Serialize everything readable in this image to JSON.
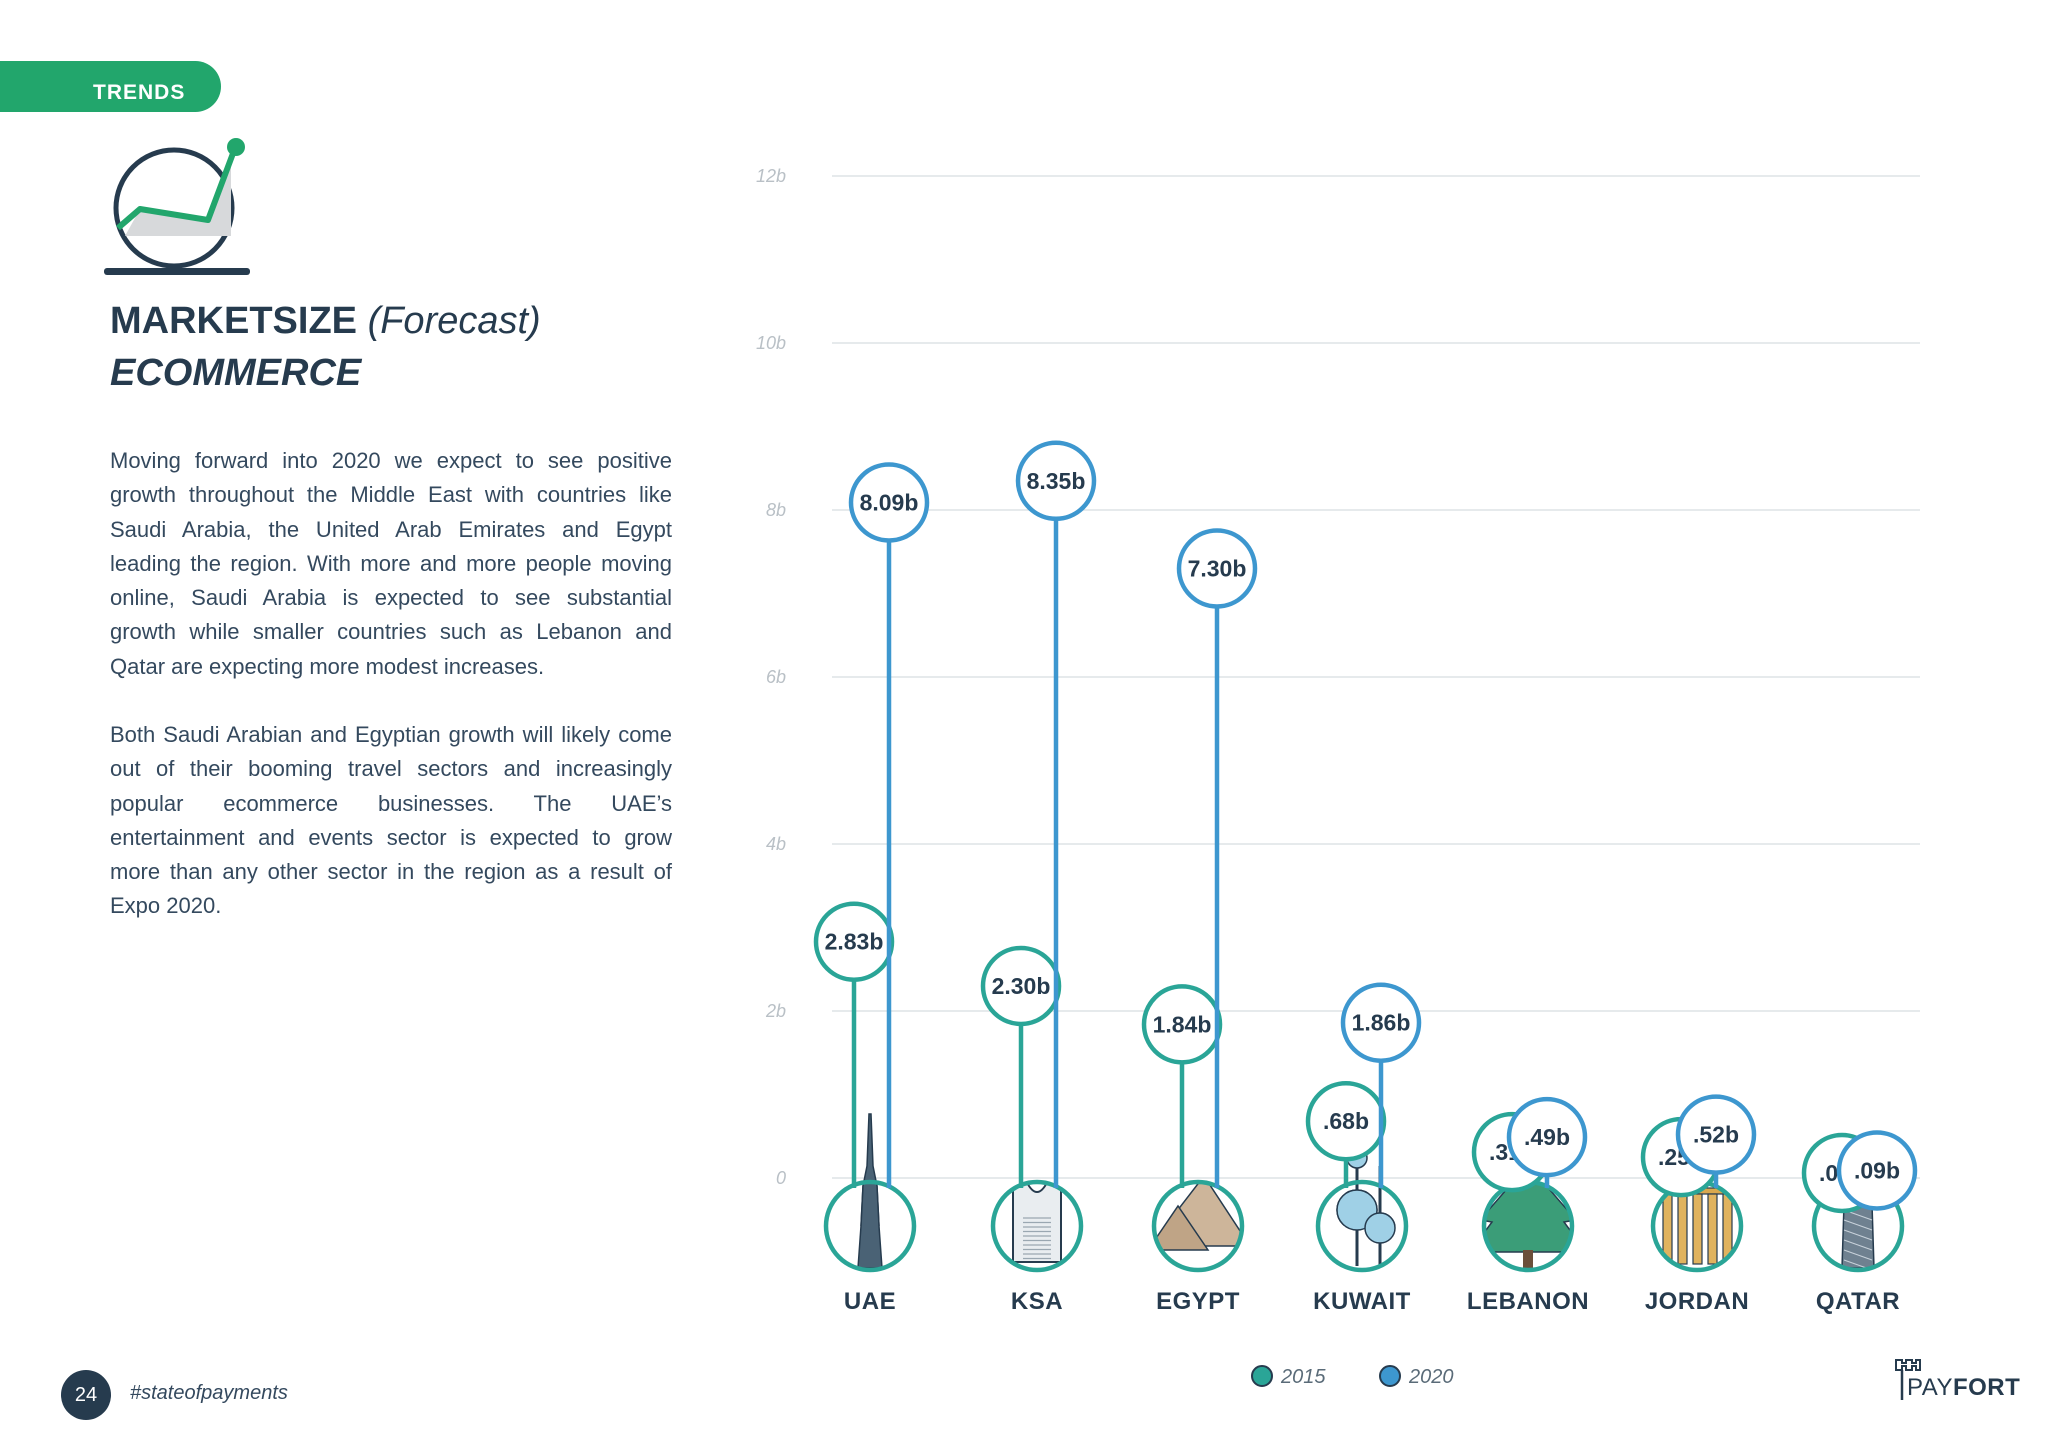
{
  "section_tab": "TRENDS",
  "title": {
    "main": "MARKETSIZE",
    "paren": "(Forecast)",
    "subtitle": "ECOMMERCE"
  },
  "body": {
    "paragraph1": "Moving forward into 2020 we expect to see positive growth throughout the Middle East with countries like Saudi Arabia, the United Arab Emirates and Egypt leading the region. With more and more people moving online, Saudi Arabia is expected to see substantial growth while smaller countries such as Lebanon and Qatar are expecting more modest increases.",
    "paragraph2": "Both Saudi Arabian and Egyptian growth will likely come out of their booming travel sectors and increasingly popular ecommerce businesses. The UAE’s entertainment and events sector is expected to grow more than any other sector in the region as a result of Expo 2020."
  },
  "footer": {
    "page_number": "24",
    "hashtag": "#stateofpayments",
    "brand_prefix": "PAY",
    "brand_suffix": "FORT"
  },
  "colors": {
    "series_2015": "#2aa597",
    "series_2020": "#3d97cf",
    "accent_green": "#22a66c",
    "navy": "#263b4e"
  },
  "chart_data": {
    "type": "lollipop",
    "title": "",
    "xlabel": "",
    "ylabel": "",
    "ylim": [
      0,
      12
    ],
    "yticks": [
      0,
      2,
      4,
      6,
      8,
      10,
      12
    ],
    "ytick_labels": [
      "0",
      "2b",
      "4b",
      "6b",
      "8b",
      "10b",
      "12b"
    ],
    "grid": true,
    "legend_position": "bottom",
    "categories": [
      "UAE",
      "KSA",
      "EGYPT",
      "KUWAIT",
      "LEBANON",
      "JORDAN",
      "QATAR"
    ],
    "category_icons": [
      "burj-khalifa-icon",
      "kingdom-centre-icon",
      "pyramids-icon",
      "kuwait-towers-icon",
      "cedar-tree-icon",
      "jerash-columns-icon",
      "doha-tower-icon"
    ],
    "series": [
      {
        "name": "2015",
        "values": [
          2.83,
          2.3,
          1.84,
          0.68,
          0.31,
          0.25,
          0.04
        ],
        "labels": [
          "2.83b",
          "2.30b",
          "1.84b",
          ".68b",
          ".31b",
          ".25b",
          ".04b"
        ]
      },
      {
        "name": "2020",
        "values": [
          8.09,
          8.35,
          7.3,
          1.86,
          0.49,
          0.52,
          0.09
        ],
        "labels": [
          "8.09b",
          "8.35b",
          "7.30b",
          "1.86b",
          ".49b",
          ".52b",
          ".09b"
        ]
      }
    ]
  }
}
